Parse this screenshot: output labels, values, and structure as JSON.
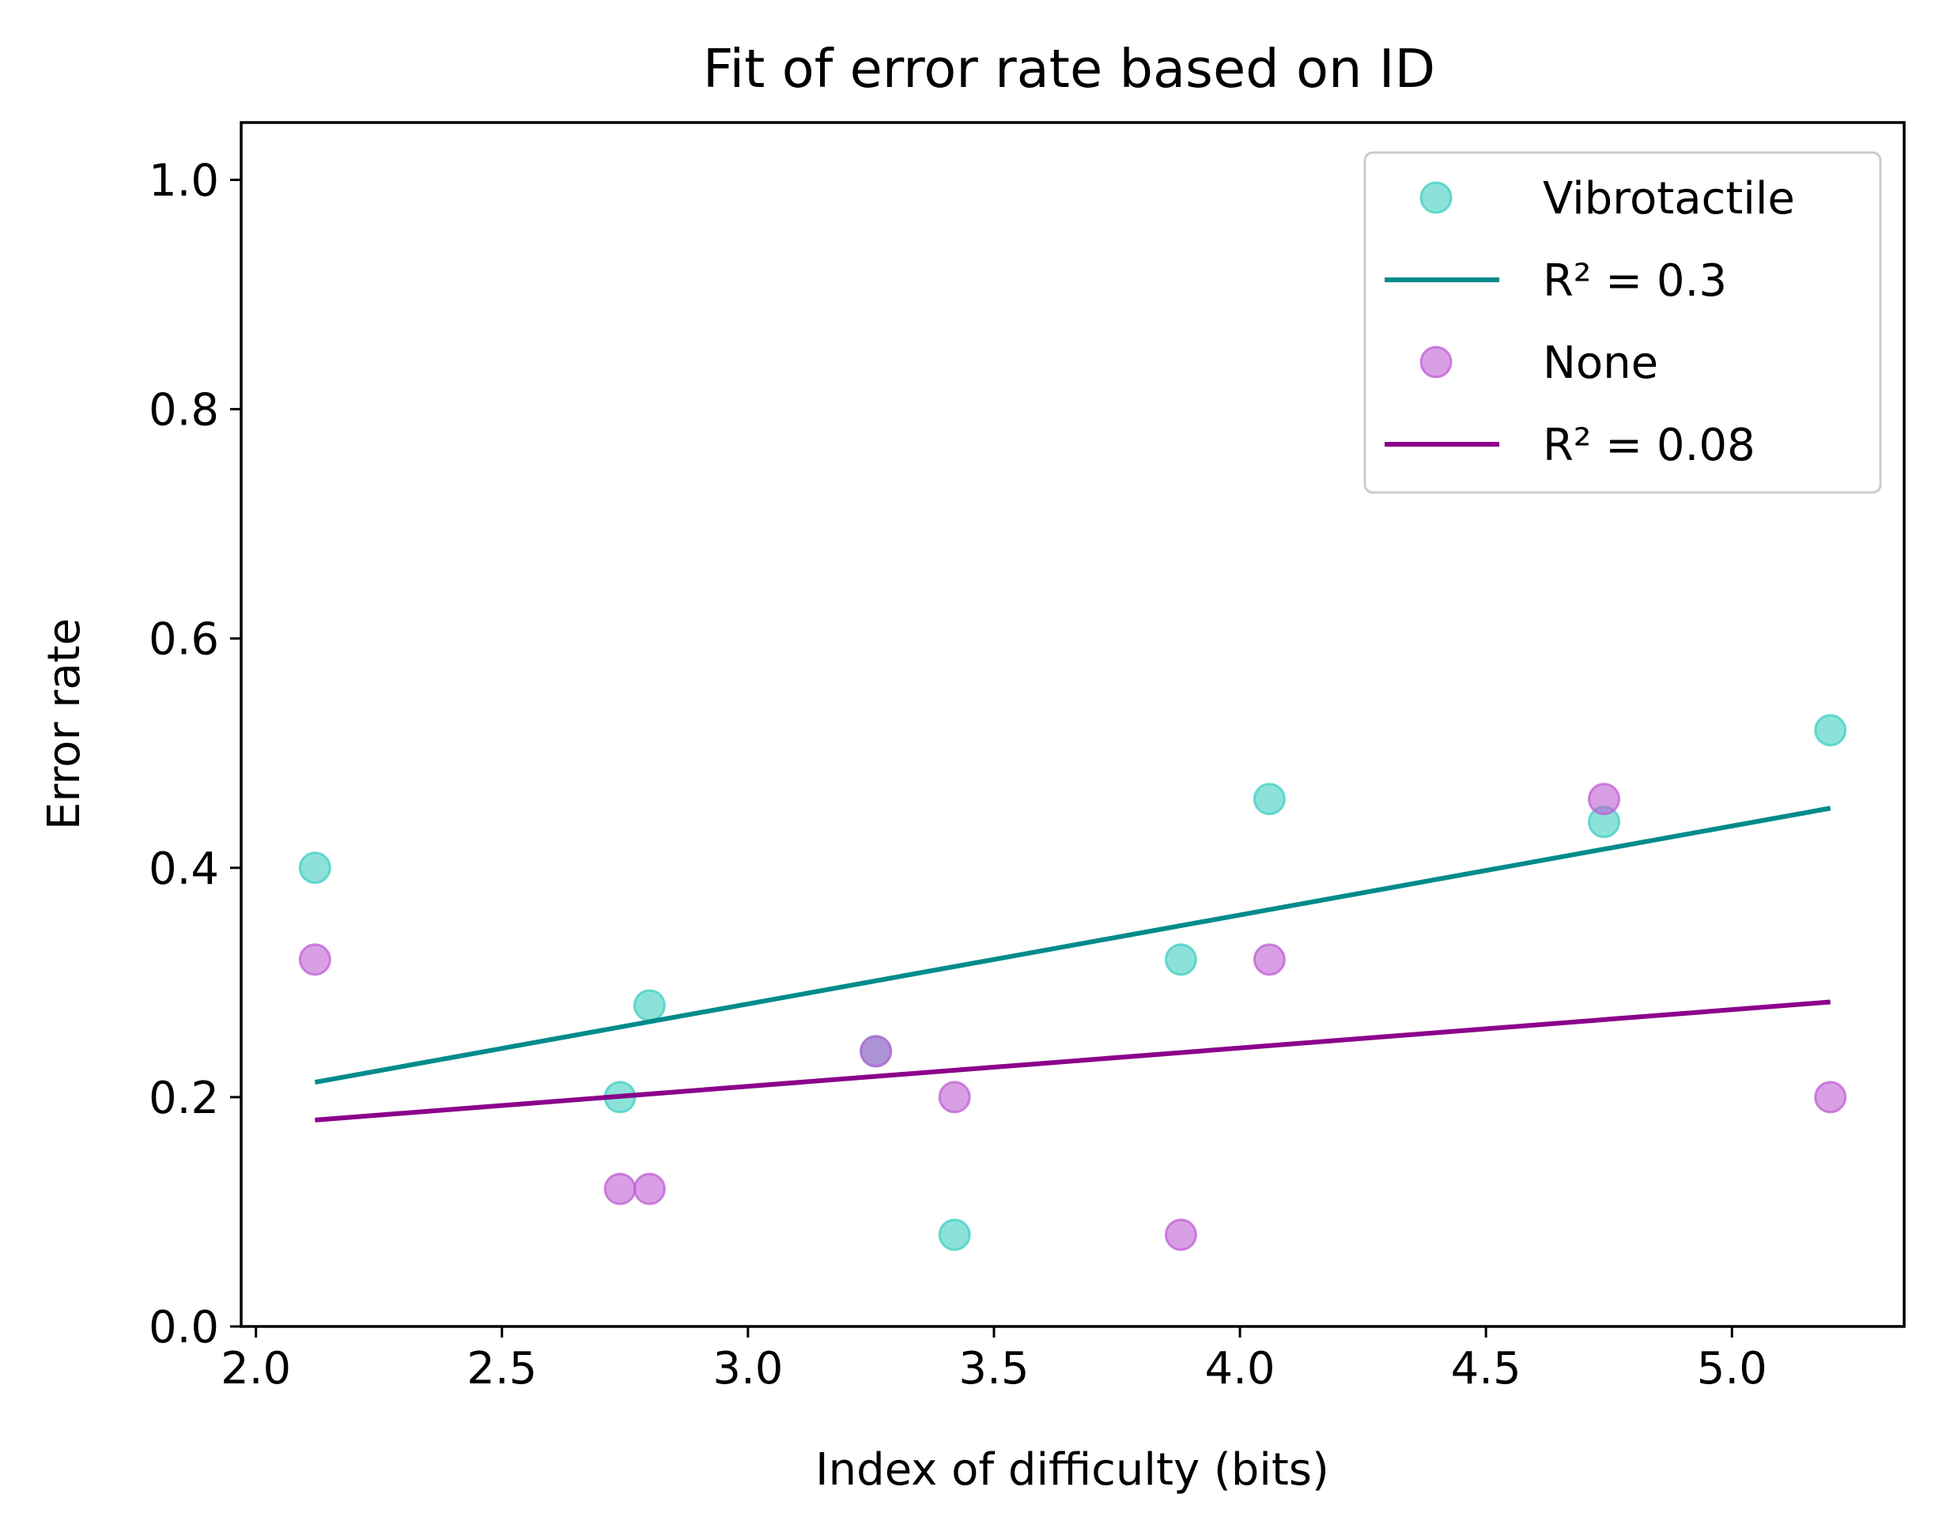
{
  "chart_data": {
    "type": "scatter",
    "title": "Fit of error rate based on ID",
    "xlabel": "Index of difficulty (bits)",
    "ylabel": "Error rate",
    "xlim": [
      1.97,
      5.35
    ],
    "ylim": [
      0.0,
      1.05
    ],
    "xticks": [
      "2.0",
      "2.5",
      "3.0",
      "3.5",
      "4.0",
      "4.5",
      "5.0"
    ],
    "yticks": [
      "0.0",
      "0.2",
      "0.4",
      "0.6",
      "0.8",
      "1.0"
    ],
    "grid": false,
    "legend_position": "top-right",
    "series": [
      {
        "name": "Vibrotactile",
        "kind": "scatter",
        "color": "#40cfc0",
        "points": [
          {
            "x": 2.12,
            "y": 0.4
          },
          {
            "x": 2.74,
            "y": 0.2
          },
          {
            "x": 2.8,
            "y": 0.28
          },
          {
            "x": 3.26,
            "y": 0.24
          },
          {
            "x": 3.42,
            "y": 0.08
          },
          {
            "x": 3.88,
            "y": 0.32
          },
          {
            "x": 4.06,
            "y": 0.46
          },
          {
            "x": 4.74,
            "y": 0.44
          },
          {
            "x": 5.2,
            "y": 0.52
          }
        ]
      },
      {
        "name": "R² = 0.3",
        "kind": "line",
        "color": "#008b8b",
        "points": [
          {
            "x": 2.12,
            "y": 0.213
          },
          {
            "x": 5.2,
            "y": 0.452
          }
        ]
      },
      {
        "name": "None",
        "kind": "scatter",
        "color": "#bf5fd4",
        "points": [
          {
            "x": 2.12,
            "y": 0.32
          },
          {
            "x": 2.74,
            "y": 0.12
          },
          {
            "x": 2.8,
            "y": 0.12
          },
          {
            "x": 3.26,
            "y": 0.24
          },
          {
            "x": 3.42,
            "y": 0.2
          },
          {
            "x": 3.88,
            "y": 0.08
          },
          {
            "x": 4.06,
            "y": 0.32
          },
          {
            "x": 4.74,
            "y": 0.46
          },
          {
            "x": 5.2,
            "y": 0.2
          }
        ]
      },
      {
        "name": "R² = 0.08",
        "kind": "line",
        "color": "#8b008b",
        "points": [
          {
            "x": 2.12,
            "y": 0.18
          },
          {
            "x": 5.2,
            "y": 0.283
          }
        ]
      }
    ]
  }
}
